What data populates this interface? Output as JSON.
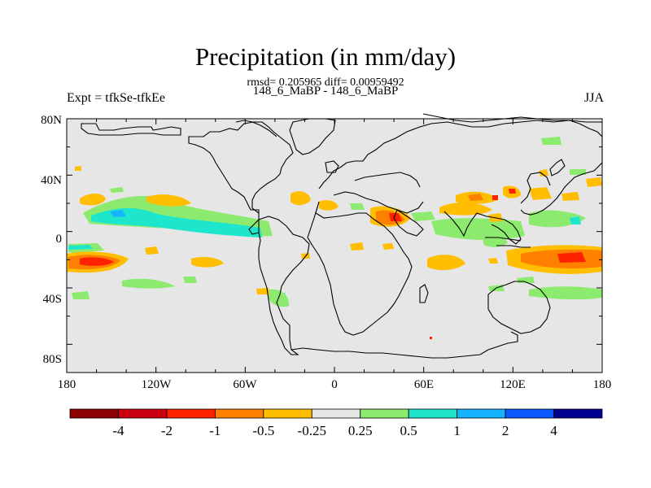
{
  "title": "Precipitation (in mm/day)",
  "stats": "rmsd= 0.205965 diff= 0.00959492",
  "cases": "148_6_MaBP - 148_6_MaBP",
  "expt": "Expt = tfkSe-tfkEe",
  "season": "JJA",
  "lat_ticks": [
    "80N",
    "40N",
    "0",
    "40S",
    "80S"
  ],
  "lon_ticks": [
    "180",
    "120W",
    "60W",
    "0",
    "60E",
    "120E",
    "180"
  ],
  "colorbar": {
    "colors": [
      "#8b0000",
      "#c8000f",
      "#ff2200",
      "#ff7f00",
      "#ffbe00",
      "#e6e6e6",
      "#8ceb6e",
      "#1ee6cd",
      "#14b4ff",
      "#0a5aff",
      "#000091"
    ],
    "labels": [
      "-4",
      "-2",
      "-1",
      "-0.5",
      "-0.25",
      "0.25",
      "0.5",
      "1",
      "2",
      "4"
    ]
  },
  "colors": {
    "background": "#e6e6e6",
    "coast": "#000000"
  }
}
